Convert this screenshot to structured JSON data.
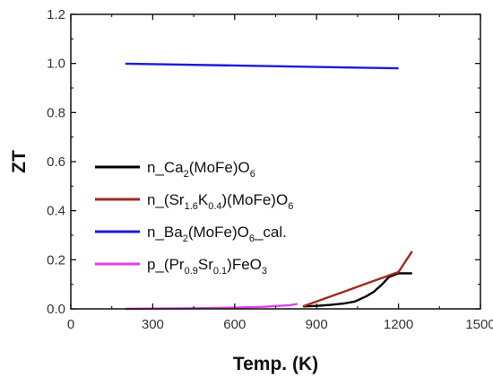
{
  "chart_data": {
    "type": "line",
    "xlabel": "Temp. (K)",
    "ylabel": "ZT",
    "xlim": [
      0,
      1500
    ],
    "ylim": [
      0,
      1.2
    ],
    "xticks": [
      "0",
      "300",
      "600",
      "900",
      "1200",
      "1500"
    ],
    "yticks": [
      "0.0",
      "0.2",
      "0.4",
      "0.6",
      "0.8",
      "1.0",
      "1.2"
    ],
    "grid": false,
    "legend_position": "left",
    "series": [
      {
        "name": "n_Ca2(MoFe)O6",
        "name_parts": [
          {
            "t": "n_Ca",
            "sub": false
          },
          {
            "t": "2",
            "sub": true
          },
          {
            "t": "(MoFe)O",
            "sub": false
          },
          {
            "t": "6",
            "sub": true
          }
        ],
        "color": "#000000",
        "x": [
          850,
          900,
          950,
          1000,
          1040,
          1080,
          1110,
          1140,
          1165,
          1200,
          1250
        ],
        "y": [
          0.01,
          0.012,
          0.016,
          0.022,
          0.03,
          0.05,
          0.07,
          0.1,
          0.13,
          0.145,
          0.145
        ]
      },
      {
        "name": "n_(Sr1.6K0.4)(MoFe)O6",
        "name_parts": [
          {
            "t": "n_(Sr",
            "sub": false
          },
          {
            "t": "1.6",
            "sub": true
          },
          {
            "t": "K",
            "sub": false
          },
          {
            "t": "0.4",
            "sub": true
          },
          {
            "t": ")(MoFe)O",
            "sub": false
          },
          {
            "t": "6",
            "sub": true
          }
        ],
        "color": "#a0281e",
        "x": [
          850,
          900,
          1000,
          1100,
          1200,
          1250
        ],
        "y": [
          0.01,
          0.03,
          0.07,
          0.11,
          0.15,
          0.235
        ]
      },
      {
        "name": "n_Ba2(MoFe)O6_cal.",
        "name_parts": [
          {
            "t": "n_Ba",
            "sub": false
          },
          {
            "t": "2",
            "sub": true
          },
          {
            "t": "(MoFe)O",
            "sub": false
          },
          {
            "t": "6",
            "sub": true
          },
          {
            "t": "_cal.",
            "sub": false
          }
        ],
        "color": "#1a1adc",
        "x": [
          200,
          1200
        ],
        "y": [
          0.999,
          0.98
        ]
      },
      {
        "name": "p_(Pr0.9Sr0.1)FeO3",
        "name_parts": [
          {
            "t": "p_(Pr",
            "sub": false
          },
          {
            "t": "0.9",
            "sub": true
          },
          {
            "t": "Sr",
            "sub": false
          },
          {
            "t": "0.1",
            "sub": true
          },
          {
            "t": ")FeO",
            "sub": false
          },
          {
            "t": "3",
            "sub": true
          }
        ],
        "color": "#e040e8",
        "x": [
          200,
          300,
          400,
          500,
          600,
          700,
          800,
          830
        ],
        "y": [
          0.0,
          0.001,
          0.002,
          0.003,
          0.005,
          0.008,
          0.015,
          0.02
        ]
      }
    ]
  }
}
